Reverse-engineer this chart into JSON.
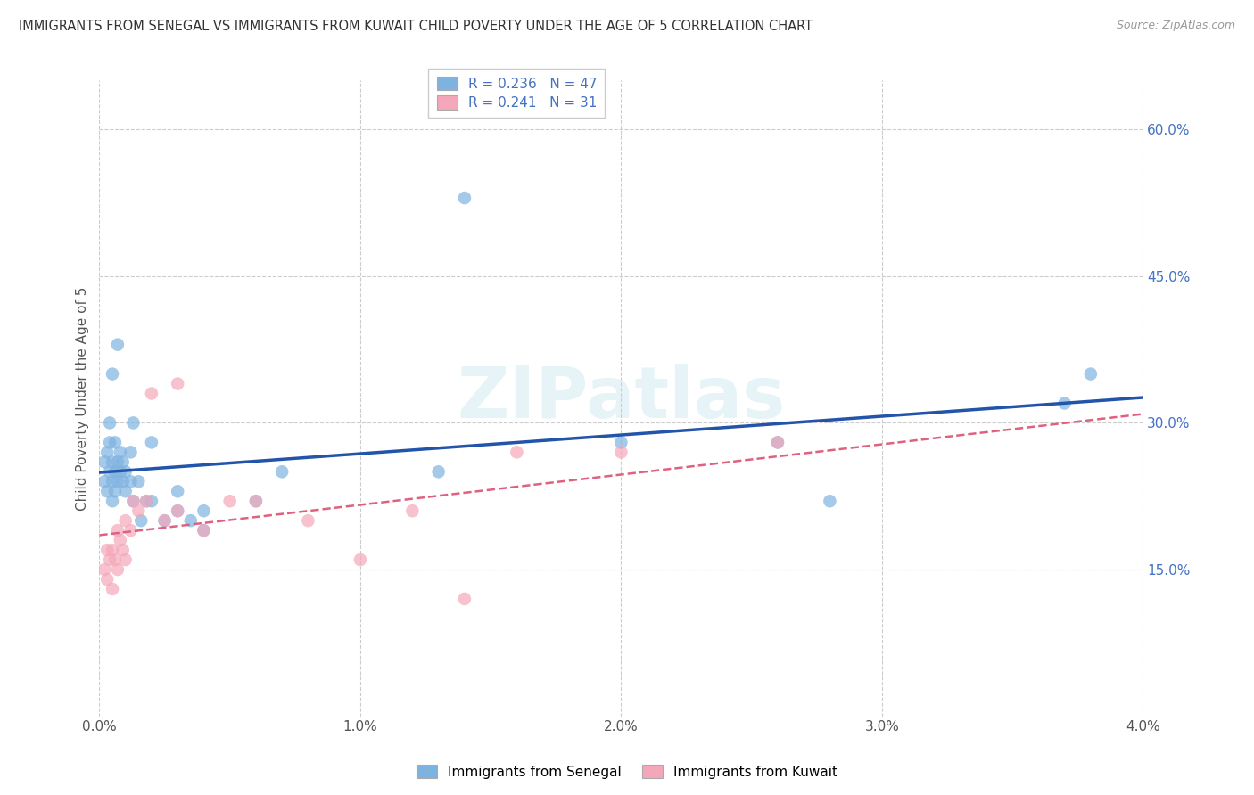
{
  "title": "IMMIGRANTS FROM SENEGAL VS IMMIGRANTS FROM KUWAIT CHILD POVERTY UNDER THE AGE OF 5 CORRELATION CHART",
  "source": "Source: ZipAtlas.com",
  "ylabel": "Child Poverty Under the Age of 5",
  "xlim": [
    0.0,
    0.04
  ],
  "ylim": [
    0.0,
    0.65
  ],
  "x_ticks": [
    0.0,
    0.01,
    0.02,
    0.03,
    0.04
  ],
  "x_tick_labels": [
    "0.0%",
    "1.0%",
    "2.0%",
    "3.0%",
    "4.0%"
  ],
  "y_ticks": [
    0.15,
    0.3,
    0.45,
    0.6
  ],
  "y_tick_labels": [
    "15.0%",
    "30.0%",
    "45.0%",
    "60.0%"
  ],
  "legend_labels": [
    "Immigrants from Senegal",
    "Immigrants from Kuwait"
  ],
  "senegal_color": "#7EB3E0",
  "kuwait_color": "#F4A7B9",
  "senegal_line_color": "#2255AA",
  "kuwait_line_color": "#E06080",
  "R_senegal": 0.236,
  "N_senegal": 47,
  "R_kuwait": 0.241,
  "N_kuwait": 31,
  "watermark": "ZIPatlas",
  "senegal_x": [
    0.0002,
    0.0002,
    0.0003,
    0.0003,
    0.0004,
    0.0004,
    0.0004,
    0.0005,
    0.0005,
    0.0005,
    0.0005,
    0.0006,
    0.0006,
    0.0006,
    0.0007,
    0.0007,
    0.0007,
    0.0008,
    0.0008,
    0.0009,
    0.0009,
    0.001,
    0.001,
    0.0012,
    0.0012,
    0.0013,
    0.0013,
    0.0015,
    0.0016,
    0.0018,
    0.002,
    0.002,
    0.0025,
    0.003,
    0.003,
    0.0035,
    0.004,
    0.004,
    0.006,
    0.007,
    0.013,
    0.014,
    0.02,
    0.026,
    0.028,
    0.037,
    0.038
  ],
  "senegal_y": [
    0.24,
    0.26,
    0.23,
    0.27,
    0.25,
    0.28,
    0.3,
    0.22,
    0.24,
    0.26,
    0.35,
    0.23,
    0.25,
    0.28,
    0.24,
    0.26,
    0.38,
    0.25,
    0.27,
    0.24,
    0.26,
    0.23,
    0.25,
    0.24,
    0.27,
    0.22,
    0.3,
    0.24,
    0.2,
    0.22,
    0.22,
    0.28,
    0.2,
    0.21,
    0.23,
    0.2,
    0.19,
    0.21,
    0.22,
    0.25,
    0.25,
    0.53,
    0.28,
    0.28,
    0.22,
    0.32,
    0.35
  ],
  "kuwait_x": [
    0.0002,
    0.0003,
    0.0003,
    0.0004,
    0.0005,
    0.0005,
    0.0006,
    0.0007,
    0.0007,
    0.0008,
    0.0009,
    0.001,
    0.001,
    0.0012,
    0.0013,
    0.0015,
    0.0018,
    0.002,
    0.0025,
    0.003,
    0.003,
    0.004,
    0.005,
    0.006,
    0.008,
    0.01,
    0.012,
    0.014,
    0.016,
    0.02,
    0.026
  ],
  "kuwait_y": [
    0.15,
    0.14,
    0.17,
    0.16,
    0.13,
    0.17,
    0.16,
    0.15,
    0.19,
    0.18,
    0.17,
    0.16,
    0.2,
    0.19,
    0.22,
    0.21,
    0.22,
    0.33,
    0.2,
    0.21,
    0.34,
    0.19,
    0.22,
    0.22,
    0.2,
    0.16,
    0.21,
    0.12,
    0.27,
    0.27,
    0.28
  ]
}
